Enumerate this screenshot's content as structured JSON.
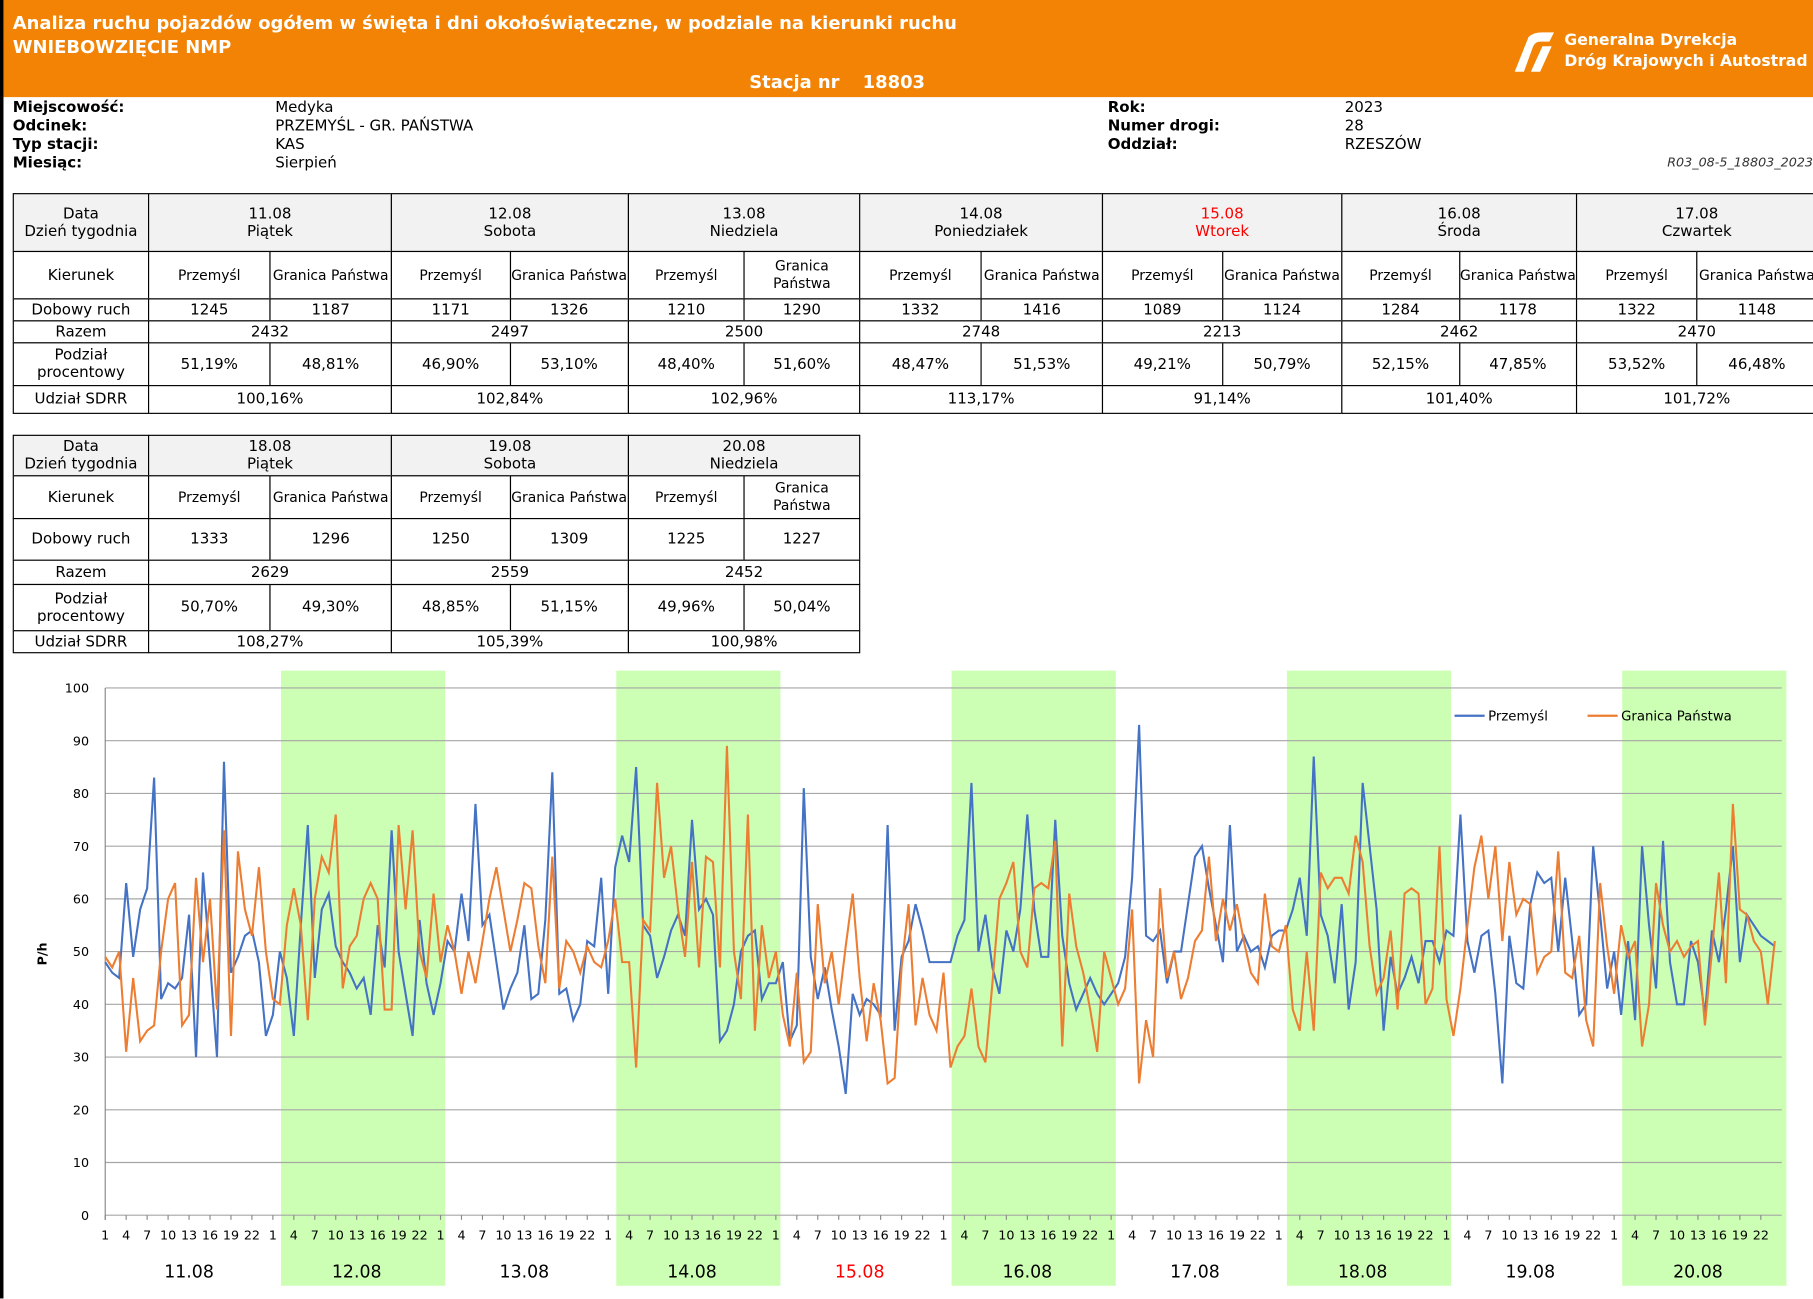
{
  "header": {
    "title": "Analiza ruchu pojazdów ogółem w święta i dni okołoświąteczne, w podziale na kierunki ruchu",
    "subtitle": "WNIEBOWZIĘCIE NMP",
    "station_label": "Stacja nr",
    "station_number": "18803",
    "logo_line1": "Generalna Dyrekcja",
    "logo_line2": "Dróg Krajowych i Autostrad"
  },
  "info": {
    "left": [
      {
        "label": "Miejscowość:",
        "value": "Medyka"
      },
      {
        "label": "Odcinek:",
        "value": "PRZEMYŚL - GR. PAŃSTWA"
      },
      {
        "label": "Typ stacji:",
        "value": "KAS"
      },
      {
        "label": "Miesiąc:",
        "value": "Sierpień"
      }
    ],
    "right": [
      {
        "label": "Rok:",
        "value": "2023"
      },
      {
        "label": "Numer drogi:",
        "value": "28"
      },
      {
        "label": "Oddział:",
        "value": "RZESZÓW"
      }
    ],
    "code": "R03_08-5_18803_2023"
  },
  "row_labels": {
    "date": "Data",
    "weekday": "Dzień tygodnia",
    "direction": "Kierunek",
    "daily": "Dobowy ruch",
    "total": "Razem",
    "share": "Podział procentowy",
    "sdrr": "Udział SDRR"
  },
  "holiday_color": "#ff0000",
  "tables": [
    {
      "days": [
        {
          "date": "11.08",
          "weekday": "Piątek",
          "directions": [
            "Przemyśl",
            "Granica Państwa"
          ],
          "daily": [
            1245,
            1187
          ],
          "total": 2432,
          "shares": [
            "51,19%",
            "48,81%"
          ],
          "sdrr": "100,16%",
          "holiday": false
        },
        {
          "date": "12.08",
          "weekday": "Sobota",
          "directions": [
            "Przemyśl",
            "Granica Państwa"
          ],
          "daily": [
            1171,
            1326
          ],
          "total": 2497,
          "shares": [
            "46,90%",
            "53,10%"
          ],
          "sdrr": "102,84%",
          "holiday": false
        },
        {
          "date": "13.08",
          "weekday": "Niedziela",
          "directions": [
            "Przemyśl",
            "Granica Państwa"
          ],
          "daily": [
            1210,
            1290
          ],
          "total": 2500,
          "shares": [
            "48,40%",
            "51,60%"
          ],
          "sdrr": "102,96%",
          "holiday": false
        },
        {
          "date": "14.08",
          "weekday": "Poniedziałek",
          "directions": [
            "Przemyśl",
            "Granica Państwa"
          ],
          "daily": [
            1332,
            1416
          ],
          "total": 2748,
          "shares": [
            "48,47%",
            "51,53%"
          ],
          "sdrr": "113,17%",
          "holiday": false
        },
        {
          "date": "15.08",
          "weekday": "Wtorek",
          "directions": [
            "Przemyśl",
            "Granica Państwa"
          ],
          "daily": [
            1089,
            1124
          ],
          "total": 2213,
          "shares": [
            "49,21%",
            "50,79%"
          ],
          "sdrr": "91,14%",
          "holiday": true
        },
        {
          "date": "16.08",
          "weekday": "Środa",
          "directions": [
            "Przemyśl",
            "Granica Państwa"
          ],
          "daily": [
            1284,
            1178
          ],
          "total": 2462,
          "shares": [
            "52,15%",
            "47,85%"
          ],
          "sdrr": "101,40%",
          "holiday": false
        },
        {
          "date": "17.08",
          "weekday": "Czwartek",
          "directions": [
            "Przemyśl",
            "Granica Państwa"
          ],
          "daily": [
            1322,
            1148
          ],
          "total": 2470,
          "shares": [
            "53,52%",
            "46,48%"
          ],
          "sdrr": "101,72%",
          "holiday": false
        }
      ]
    },
    {
      "days": [
        {
          "date": "18.08",
          "weekday": "Piątek",
          "directions": [
            "Przemyśl",
            "Granica Państwa"
          ],
          "daily": [
            1333,
            1296
          ],
          "total": 2629,
          "shares": [
            "50,70%",
            "49,30%"
          ],
          "sdrr": "108,27%",
          "holiday": false
        },
        {
          "date": "19.08",
          "weekday": "Sobota",
          "directions": [
            "Przemyśl",
            "Granica Państwa"
          ],
          "daily": [
            1250,
            1309
          ],
          "total": 2559,
          "shares": [
            "48,85%",
            "51,15%"
          ],
          "sdrr": "105,39%",
          "holiday": false
        },
        {
          "date": "20.08",
          "weekday": "Niedziela",
          "directions": [
            "Przemyśl",
            "Granica Państwa"
          ],
          "daily": [
            1225,
            1227
          ],
          "total": 2452,
          "shares": [
            "49,96%",
            "50,04%"
          ],
          "sdrr": "100,98%",
          "holiday": false
        }
      ]
    }
  ],
  "chart_data": {
    "type": "line",
    "ylabel": "P/h",
    "ylim": [
      0,
      100
    ],
    "yticks": [
      0,
      10,
      20,
      30,
      40,
      50,
      60,
      70,
      80,
      90,
      100
    ],
    "grid": true,
    "legend": "top-right",
    "categories": [
      "11.08",
      "12.08",
      "13.08",
      "14.08",
      "15.08",
      "16.08",
      "17.08",
      "18.08",
      "19.08",
      "20.08"
    ],
    "xticks": [
      1,
      4,
      7,
      10,
      13,
      16,
      19,
      22
    ],
    "shaded": [
      false,
      true,
      false,
      true,
      false,
      true,
      false,
      true,
      false,
      true
    ],
    "band_color": "#ccffb4",
    "highlight": [
      false,
      false,
      false,
      false,
      true,
      false,
      false,
      false,
      false,
      false
    ],
    "highlight_color": "#ff0000",
    "series": [
      {
        "name": "Przemyśl",
        "color": "#4472c4",
        "values": [
          [
            48,
            46,
            45,
            63,
            49,
            58,
            62,
            83,
            41,
            44,
            43,
            45,
            57,
            30,
            65,
            48,
            30,
            86,
            46,
            49,
            53,
            54,
            48,
            34
          ],
          [
            38,
            50,
            45,
            34,
            55,
            74,
            45,
            58,
            61,
            51,
            48,
            46,
            43,
            45,
            38,
            55,
            47,
            73,
            50,
            42,
            34,
            56,
            44,
            38
          ],
          [
            44,
            52,
            50,
            61,
            52,
            78,
            55,
            57,
            48,
            39,
            43,
            46,
            55,
            41,
            42,
            56,
            84,
            42,
            43,
            37,
            40,
            52,
            51,
            64
          ],
          [
            42,
            66,
            72,
            67,
            85,
            55,
            53,
            45,
            49,
            54,
            57,
            53,
            75,
            58,
            60,
            57,
            33,
            35,
            40,
            50,
            53,
            54,
            41,
            44
          ],
          [
            44,
            48,
            33,
            36,
            81,
            49,
            41,
            47,
            39,
            32,
            23,
            42,
            38,
            41,
            40,
            38,
            74,
            35,
            49,
            52,
            59,
            54,
            48,
            48
          ],
          [
            48,
            48,
            53,
            56,
            82,
            50,
            57,
            47,
            42,
            54,
            50,
            58,
            76,
            58,
            49,
            49,
            75,
            53,
            44,
            39,
            42,
            45,
            42,
            40
          ],
          [
            42,
            44,
            49,
            64,
            93,
            53,
            52,
            54,
            44,
            50,
            50,
            59,
            68,
            70,
            62,
            55,
            48,
            74,
            50,
            53,
            50,
            51,
            47,
            53
          ],
          [
            54,
            54,
            58,
            64,
            53,
            87,
            57,
            53,
            44,
            59,
            39,
            48,
            82,
            70,
            58,
            35,
            49,
            42,
            45,
            49,
            44,
            52,
            52,
            48
          ],
          [
            54,
            53,
            76,
            52,
            46,
            53,
            54,
            42,
            25,
            53,
            44,
            43,
            59,
            65,
            63,
            64,
            50,
            64,
            52,
            38,
            40,
            70,
            57,
            43
          ],
          [
            50,
            38,
            52,
            37,
            70,
            55,
            43,
            71,
            48,
            40,
            40,
            52,
            48,
            38,
            54,
            48,
            58,
            70,
            48,
            57,
            55,
            53,
            52,
            51
          ]
        ]
      },
      {
        "name": "Granica Państwa",
        "color": "#ed7d31",
        "values": [
          [
            49,
            47,
            50,
            31,
            45,
            33,
            35,
            36,
            50,
            60,
            63,
            36,
            38,
            64,
            48,
            60,
            39,
            73,
            34,
            69,
            58,
            53,
            66,
            50
          ],
          [
            41,
            40,
            55,
            62,
            55,
            37,
            60,
            68,
            65,
            76,
            43,
            51,
            53,
            60,
            63,
            60,
            39,
            39,
            74,
            58,
            73,
            50,
            45,
            61
          ],
          [
            48,
            55,
            50,
            42,
            50,
            44,
            52,
            60,
            66,
            58,
            50,
            56,
            63,
            62,
            51,
            44,
            68,
            43,
            52,
            50,
            46,
            51,
            48,
            47
          ],
          [
            52,
            60,
            48,
            48,
            28,
            56,
            54,
            82,
            64,
            70,
            58,
            49,
            67,
            47,
            68,
            67,
            47,
            89,
            50,
            41,
            76,
            35,
            55,
            45
          ],
          [
            50,
            38,
            32,
            46,
            29,
            31,
            59,
            44,
            50,
            40,
            51,
            61,
            45,
            33,
            44,
            37,
            25,
            26,
            47,
            59,
            36,
            45,
            38,
            35
          ],
          [
            46,
            28,
            32,
            34,
            43,
            32,
            29,
            44,
            60,
            63,
            67,
            50,
            47,
            62,
            63,
            62,
            71,
            32,
            61,
            51,
            46,
            39,
            31,
            50
          ],
          [
            45,
            40,
            43,
            58,
            25,
            37,
            30,
            62,
            45,
            50,
            41,
            45,
            52,
            54,
            68,
            52,
            60,
            54,
            59,
            52,
            46,
            44,
            61,
            51
          ],
          [
            50,
            55,
            39,
            35,
            50,
            35,
            65,
            62,
            64,
            64,
            61,
            72,
            67,
            51,
            42,
            45,
            54,
            39,
            61,
            62,
            61,
            40,
            43,
            70
          ],
          [
            41,
            34,
            43,
            55,
            66,
            72,
            60,
            70,
            52,
            67,
            57,
            60,
            59,
            46,
            49,
            50,
            69,
            46,
            45,
            53,
            37,
            32,
            63,
            51
          ],
          [
            42,
            55,
            49,
            52,
            32,
            40,
            63,
            55,
            50,
            52,
            49,
            51,
            52,
            36,
            50,
            65,
            44,
            78,
            58,
            57,
            52,
            50,
            40,
            52
          ]
        ]
      }
    ]
  }
}
